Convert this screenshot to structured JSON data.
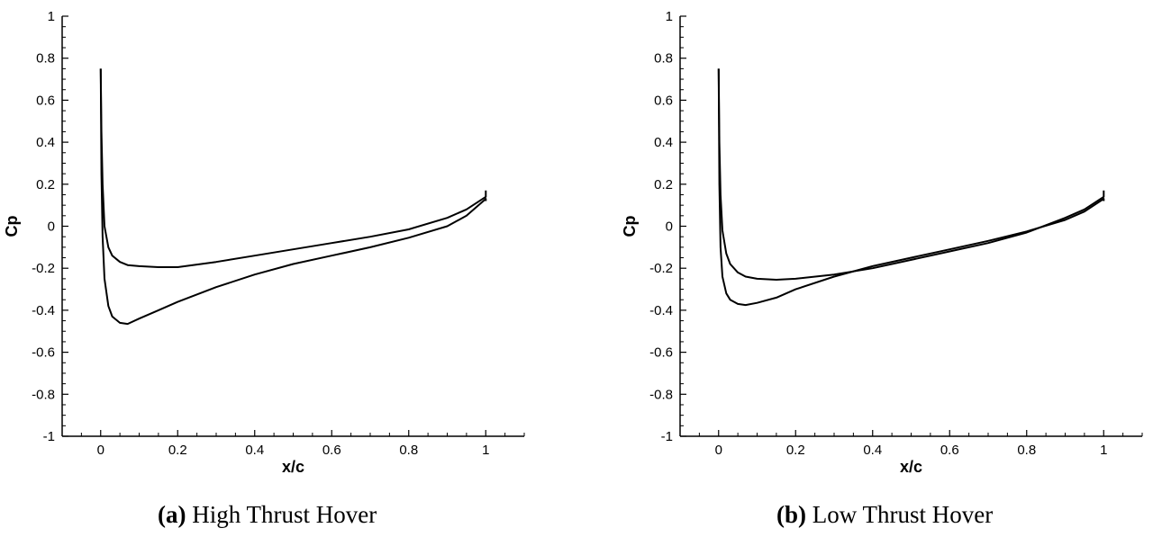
{
  "chart_data": [
    {
      "type": "line",
      "xlabel": "x/c",
      "ylabel": "Cp",
      "xlim": [
        -0.1,
        1.1
      ],
      "ylim": [
        -1,
        1
      ],
      "x_ticks": [
        0,
        0.2,
        0.4,
        0.6,
        0.8,
        1
      ],
      "x_tick_labels": [
        "0",
        "0.2",
        "0.4",
        "0.6",
        "0.8",
        "1"
      ],
      "y_ticks": [
        1,
        0.8,
        0.6,
        0.4,
        0.2,
        0,
        -0.2,
        -0.4,
        -0.6,
        -0.8,
        -1
      ],
      "y_tick_labels": [
        "1",
        "0.8",
        "0.6",
        "0.4",
        "0.2",
        "0",
        "-0.2",
        "-0.4",
        "-0.6",
        "-0.8",
        "-1"
      ],
      "grid": false,
      "caption_label": "(a)",
      "caption_text": " High Thrust Hover",
      "series": [
        {
          "x": [
            0,
            0.002,
            0.005,
            0.01,
            0.02,
            0.03,
            0.05,
            0.07,
            0.1,
            0.15,
            0.2,
            0.3,
            0.4,
            0.5,
            0.6,
            0.7,
            0.8,
            0.9,
            0.95,
            1.0,
            1.0
          ],
          "y": [
            0.75,
            0.45,
            0.2,
            0.0,
            -0.1,
            -0.14,
            -0.17,
            -0.185,
            -0.19,
            -0.195,
            -0.195,
            -0.17,
            -0.14,
            -0.11,
            -0.08,
            -0.05,
            -0.015,
            0.04,
            0.08,
            0.14,
            0.17
          ]
        },
        {
          "x": [
            0,
            0.002,
            0.005,
            0.01,
            0.02,
            0.03,
            0.05,
            0.07,
            0.1,
            0.15,
            0.2,
            0.3,
            0.4,
            0.5,
            0.6,
            0.7,
            0.8,
            0.9,
            0.95,
            1.0,
            1.0
          ],
          "y": [
            0.75,
            0.25,
            -0.05,
            -0.25,
            -0.38,
            -0.43,
            -0.46,
            -0.465,
            -0.44,
            -0.4,
            -0.36,
            -0.29,
            -0.23,
            -0.18,
            -0.14,
            -0.1,
            -0.055,
            0.0,
            0.05,
            0.13,
            0.12
          ]
        }
      ]
    },
    {
      "type": "line",
      "xlabel": "x/c",
      "ylabel": "Cp",
      "xlim": [
        -0.1,
        1.1
      ],
      "ylim": [
        -1,
        1
      ],
      "x_ticks": [
        0,
        0.2,
        0.4,
        0.6,
        0.8,
        1
      ],
      "x_tick_labels": [
        "0",
        "0.2",
        "0.4",
        "0.6",
        "0.8",
        "1"
      ],
      "y_ticks": [
        1,
        0.8,
        0.6,
        0.4,
        0.2,
        0,
        -0.2,
        -0.4,
        -0.6,
        -0.8,
        -1
      ],
      "y_tick_labels": [
        "1",
        "0.8",
        "0.6",
        "0.4",
        "0.2",
        "0",
        "-0.2",
        "-0.4",
        "-0.6",
        "-0.8",
        "-1"
      ],
      "grid": false,
      "caption_label": "(b)",
      "caption_text": " Low Thrust Hover",
      "series": [
        {
          "x": [
            0,
            0.002,
            0.005,
            0.01,
            0.02,
            0.03,
            0.05,
            0.07,
            0.1,
            0.15,
            0.2,
            0.3,
            0.4,
            0.5,
            0.6,
            0.7,
            0.8,
            0.9,
            0.95,
            1.0,
            1.0
          ],
          "y": [
            0.75,
            0.4,
            0.15,
            -0.02,
            -0.13,
            -0.18,
            -0.22,
            -0.24,
            -0.25,
            -0.255,
            -0.25,
            -0.23,
            -0.2,
            -0.16,
            -0.12,
            -0.08,
            -0.03,
            0.04,
            0.08,
            0.14,
            0.17
          ]
        },
        {
          "x": [
            0,
            0.002,
            0.005,
            0.01,
            0.02,
            0.03,
            0.05,
            0.07,
            0.1,
            0.15,
            0.2,
            0.3,
            0.4,
            0.5,
            0.6,
            0.7,
            0.8,
            0.9,
            0.95,
            1.0,
            1.0
          ],
          "y": [
            0.75,
            0.2,
            -0.1,
            -0.24,
            -0.32,
            -0.35,
            -0.37,
            -0.375,
            -0.365,
            -0.34,
            -0.3,
            -0.24,
            -0.19,
            -0.15,
            -0.11,
            -0.07,
            -0.025,
            0.03,
            0.07,
            0.13,
            0.12
          ]
        }
      ]
    }
  ]
}
